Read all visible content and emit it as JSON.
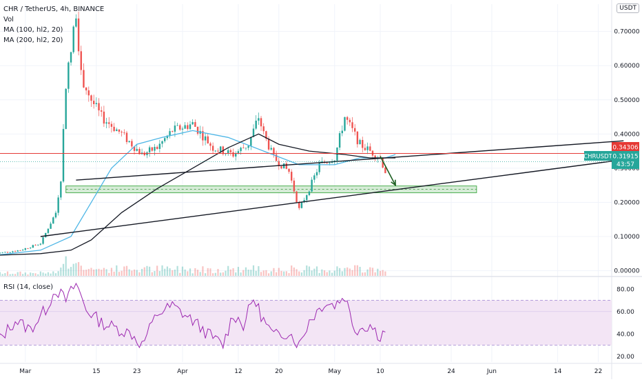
{
  "header": {
    "symbol_line": "CHR / TetherUS, 4h, BINANCE",
    "vol_label": "Vol",
    "ma100_label": "MA (100, hl2, 20)",
    "ma200_label": "MA (200, hl2, 20)",
    "currency": "USDT"
  },
  "rsi": {
    "label": "RSI (14, close)"
  },
  "price_markers": {
    "resistance_level": "0.34306",
    "ticker": "CHRUSDT",
    "last_price": "0.31915",
    "countdown": "43:57"
  },
  "colors": {
    "candle_up": "#26a69a",
    "candle_down": "#ef5350",
    "ma100": "#4db6e6",
    "ma200": "#131722",
    "trendline": "#131722",
    "horizontal_line": "#e53935",
    "zone": "#4caf50",
    "rsi_line": "#9c27b0",
    "rsi_band": "#f3e5f5",
    "last_price_badge": "#26a69a"
  },
  "chart_data": [
    {
      "type": "candlestick",
      "title": "CHR / TetherUS, 4h, BINANCE",
      "x_ticks": [
        "Mar",
        "15",
        "23",
        "Apr",
        "12",
        "20",
        "May",
        "10",
        "24",
        "Jun",
        "14",
        "22"
      ],
      "y_ticks": [
        "0.70000",
        "0.60000",
        "0.50000",
        "0.40000",
        "0.30000",
        "0.20000",
        "0.10000",
        "0.00000"
      ],
      "ylim": [
        -0.015,
        0.78
      ],
      "grid": true,
      "price_series": {
        "name": "CHRUSDT",
        "x": [
          "Feb 23",
          "Feb 28",
          "Mar 4",
          "Mar 7",
          "Mar 8",
          "Mar 9",
          "Mar 10",
          "Mar 11",
          "Mar 12",
          "Mar 14",
          "Mar 16",
          "Mar 20",
          "Mar 24",
          "Mar 27",
          "Mar 30",
          "Apr 3",
          "Apr 7",
          "Apr 11",
          "Apr 14",
          "Apr 16",
          "Apr 17",
          "Apr 19",
          "Apr 22",
          "Apr 24",
          "Apr 26",
          "Apr 28",
          "May 1",
          "May 3",
          "May 6",
          "May 9",
          "May 10",
          "May 11"
        ],
        "close": [
          0.05,
          0.06,
          0.08,
          0.17,
          0.27,
          0.55,
          0.64,
          0.76,
          0.57,
          0.5,
          0.45,
          0.4,
          0.34,
          0.36,
          0.41,
          0.43,
          0.36,
          0.34,
          0.37,
          0.45,
          0.4,
          0.33,
          0.29,
          0.18,
          0.24,
          0.31,
          0.33,
          0.45,
          0.37,
          0.34,
          0.33,
          0.29
        ]
      },
      "ma100": {
        "name": "MA (100, hl2, 20)",
        "x": [
          "Feb 23",
          "Mar 4",
          "Mar 10",
          "Mar 14",
          "Mar 18",
          "Mar 23",
          "Mar 28",
          "Apr 3",
          "Apr 10",
          "Apr 17",
          "Apr 24",
          "May 1",
          "May 6",
          "May 11",
          "May 13"
        ],
        "y": [
          0.045,
          0.06,
          0.1,
          0.2,
          0.3,
          0.37,
          0.39,
          0.41,
          0.39,
          0.35,
          0.31,
          0.31,
          0.33,
          0.33,
          0.34
        ]
      },
      "ma200": {
        "name": "MA (200, hl2, 20)",
        "x": [
          "Feb 23",
          "Mar 4",
          "Mar 10",
          "Mar 14",
          "Mar 20",
          "Mar 27",
          "Apr 3",
          "Apr 10",
          "Apr 16",
          "Apr 20",
          "Apr 26",
          "May 3",
          "May 8",
          "May 13"
        ],
        "y": [
          0.045,
          0.05,
          0.06,
          0.09,
          0.17,
          0.24,
          0.3,
          0.36,
          0.4,
          0.37,
          0.35,
          0.34,
          0.33,
          0.33
        ]
      },
      "trendlines": [
        {
          "x": [
            "Mar 11",
            "Jun 27"
          ],
          "y": [
            0.265,
            0.38
          ]
        },
        {
          "x": [
            "Mar 4",
            "Jun 27"
          ],
          "y": [
            0.1,
            0.325
          ]
        }
      ],
      "horizontal_line": {
        "y": 0.34306
      },
      "support_zone": {
        "x": [
          "Mar 9",
          "May 29"
        ],
        "y": [
          0.228,
          0.248
        ]
      },
      "arrow": {
        "x": [
          "May 10",
          "May 13"
        ],
        "y": [
          0.335,
          0.25
        ]
      },
      "current_price": 0.31915
    },
    {
      "type": "line",
      "title": "RSI (14, close)",
      "y_ticks": [
        "80.00",
        "60.00",
        "40.00",
        "20.00"
      ],
      "ylim": [
        15,
        90
      ],
      "bands": [
        30,
        70
      ],
      "series": [
        {
          "name": "RSI (14, close)",
          "x": [
            "Feb 23",
            "Feb 27",
            "Mar 2",
            "Mar 5",
            "Mar 7",
            "Mar 9",
            "Mar 11",
            "Mar 13",
            "Mar 16",
            "Mar 19",
            "Mar 22",
            "Mar 24",
            "Mar 27",
            "Mar 30",
            "Apr 3",
            "Apr 6",
            "Apr 9",
            "Apr 11",
            "Apr 13",
            "Apr 15",
            "Apr 17",
            "Apr 19",
            "Apr 22",
            "Apr 24",
            "Apr 26",
            "Apr 29",
            "May 1",
            "May 3",
            "May 5",
            "May 8",
            "May 10",
            "May 11"
          ],
          "y": [
            30,
            52,
            44,
            62,
            80,
            70,
            85,
            62,
            50,
            45,
            40,
            30,
            58,
            65,
            52,
            40,
            30,
            58,
            48,
            72,
            52,
            38,
            42,
            30,
            52,
            68,
            66,
            74,
            44,
            48,
            38,
            44
          ]
        }
      ]
    }
  ]
}
